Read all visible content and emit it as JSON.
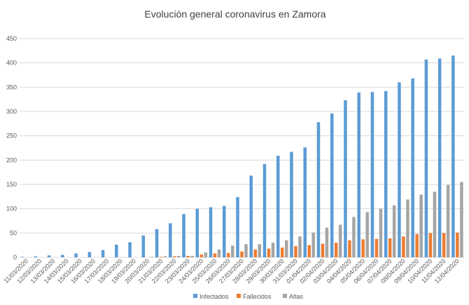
{
  "chart_data": {
    "type": "bar",
    "title": "Evolución general coronavirus en Zamora",
    "xlabel": "",
    "ylabel": "",
    "ylim": [
      0,
      450
    ],
    "yticks": [
      0,
      50,
      100,
      150,
      200,
      250,
      300,
      350,
      400,
      450
    ],
    "grid": true,
    "legend_position": "bottom",
    "categories": [
      "11/03/2020",
      "12/03/2020",
      "13/03/2020",
      "14/03/2020",
      "15/03/2020",
      "16/03/2020",
      "17/03/2020",
      "18/03/2020",
      "19/03/2020",
      "20/03/2020",
      "21/03/2020",
      "22/03/2020",
      "23/03/2020",
      "24/03/2020",
      "25/03/2020",
      "26/03/2020",
      "27/03/2020",
      "28/03/2020",
      "29/03/2020",
      "30/03/2020",
      "31/03/2020",
      "01/04/2020",
      "02/04/2020",
      "03/04/2020",
      "04/04/2020",
      "05/04/2020",
      "06/04/2020",
      "07/04/2020",
      "08/04/2020",
      "09/04/2020",
      "10/04/2020",
      "11/04/2020",
      "12/04/2020"
    ],
    "series": [
      {
        "name": "Infectados",
        "color": "#5b9bd5",
        "values": [
          1,
          2,
          4,
          5,
          8,
          11,
          15,
          26,
          31,
          45,
          58,
          70,
          89,
          100,
          103,
          106,
          124,
          168,
          192,
          209,
          217,
          226,
          278,
          296,
          323,
          339,
          340,
          342,
          360,
          368,
          407,
          409,
          415
        ]
      },
      {
        "name": "Fallecidos",
        "color": "#ed7d31",
        "values": [
          0,
          0,
          0,
          0,
          0,
          0,
          0,
          0,
          0,
          0,
          1,
          2,
          3,
          6,
          8,
          9,
          12,
          16,
          18,
          20,
          23,
          25,
          28,
          30,
          35,
          37,
          38,
          39,
          43,
          48,
          50,
          50,
          51
        ]
      },
      {
        "name": "Altas",
        "color": "#a5a5a5",
        "values": [
          0,
          0,
          0,
          0,
          0,
          0,
          0,
          0,
          0,
          1,
          2,
          3,
          3,
          10,
          16,
          24,
          27,
          27,
          30,
          35,
          43,
          51,
          61,
          67,
          83,
          93,
          100,
          107,
          119,
          129,
          135,
          149,
          155
        ]
      }
    ]
  }
}
